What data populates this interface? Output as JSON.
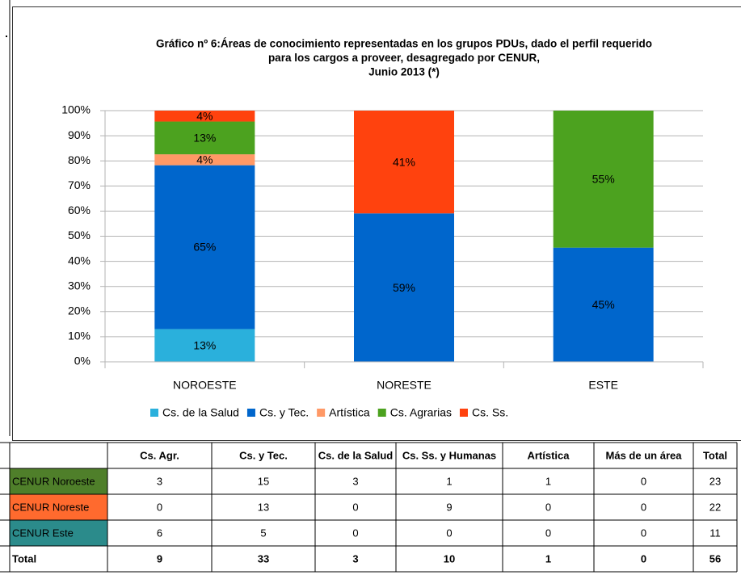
{
  "chart_data": {
    "type": "stacked_bar_100",
    "title_lines": [
      "Gráfico nº 6:Áreas de conocimiento representadas en los grupos PDUs, dado el perfil requerido",
      "para los cargos a proveer, desagregado por CENUR,",
      "Junio 2013 (*)"
    ],
    "categories": [
      "NOROESTE",
      "NORESTE",
      "ESTE"
    ],
    "series": [
      {
        "name": "Cs. de la Salud",
        "color": "#2ab0dc",
        "values": [
          13.04,
          0,
          0
        ],
        "value_labels": [
          "13%",
          null,
          null
        ]
      },
      {
        "name": "Cs. y Tec.",
        "color": "#0066cc",
        "values": [
          65.22,
          59.09,
          45.45
        ],
        "value_labels": [
          "65%",
          "59%",
          "45%"
        ]
      },
      {
        "name": "Artística",
        "color": "#ff9966",
        "values": [
          4.35,
          0,
          0
        ],
        "value_labels": [
          "4%",
          null,
          null
        ]
      },
      {
        "name": "Cs. Agrarias",
        "color": "#4ca21f",
        "values": [
          13.04,
          0,
          54.55
        ],
        "value_labels": [
          "13%",
          null,
          "55%"
        ]
      },
      {
        "name": "Cs. Ss.",
        "color": "#ff420e",
        "values": [
          4.35,
          40.91,
          0
        ],
        "value_labels": [
          "4%",
          "41%",
          null
        ]
      }
    ],
    "ylim": [
      0,
      100
    ],
    "yticks": [
      {
        "value": 0,
        "label": "0%"
      },
      {
        "value": 10,
        "label": "10%"
      },
      {
        "value": 20,
        "label": "20%"
      },
      {
        "value": 30,
        "label": "30%"
      },
      {
        "value": 40,
        "label": "40%"
      },
      {
        "value": 50,
        "label": "50%"
      },
      {
        "value": 60,
        "label": "60%"
      },
      {
        "value": 70,
        "label": "70%"
      },
      {
        "value": 80,
        "label": "80%"
      },
      {
        "value": 90,
        "label": "90%"
      },
      {
        "value": 100,
        "label": "100%"
      }
    ],
    "grid": true,
    "legend": "bottom"
  },
  "table": {
    "columns": [
      "Cs. Agr.",
      "Cs. y Tec.",
      "Cs. de la Salud",
      "Cs. Ss. y Humanas",
      "Artística",
      "Más de un área",
      "Total"
    ],
    "rows": [
      {
        "label": "CENUR Noroeste",
        "color": "#4f7f2a",
        "cells": [
          3,
          15,
          3,
          1,
          1,
          0,
          23
        ]
      },
      {
        "label": "CENUR Noreste",
        "color": "#ff6a2e",
        "cells": [
          0,
          13,
          0,
          9,
          0,
          0,
          22
        ]
      },
      {
        "label": "CENUR Este",
        "color": "#2b8b8b",
        "cells": [
          6,
          5,
          0,
          0,
          0,
          0,
          11
        ]
      },
      {
        "label": "Total",
        "cells": [
          9,
          33,
          3,
          10,
          1,
          0,
          56
        ]
      }
    ]
  }
}
